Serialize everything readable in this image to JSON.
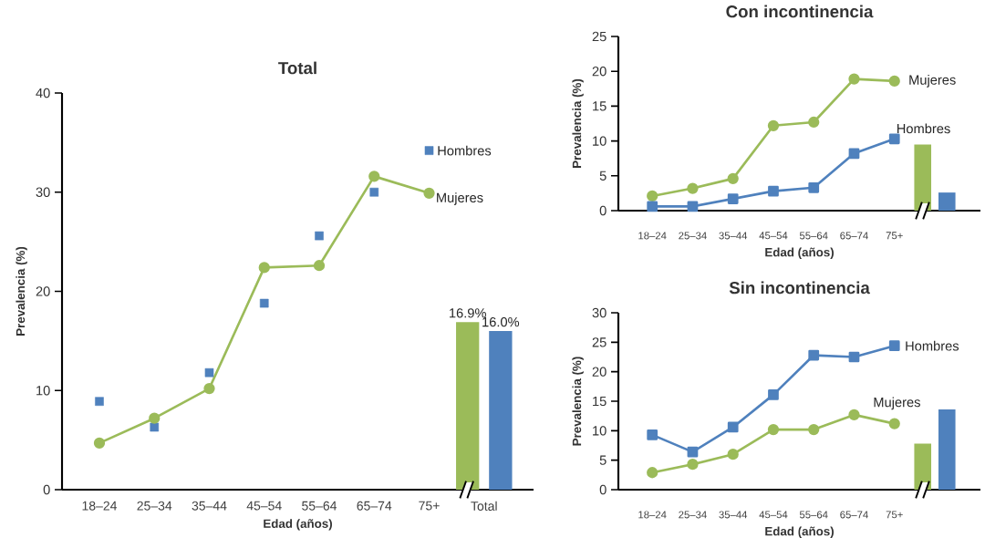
{
  "chart_data": [
    {
      "type": "line",
      "title": "Total",
      "xlabel": "Edad (años)",
      "ylabel": "Prevalencia (%)",
      "categories": [
        "18–24",
        "25–34",
        "35–44",
        "45–54",
        "55–64",
        "65–74",
        "75+",
        "Total"
      ],
      "ylim": [
        0,
        40
      ],
      "yticks": [
        0,
        10,
        20,
        30,
        40
      ],
      "grid": false,
      "legend": false,
      "series": [
        {
          "name": "Hombres",
          "type": "scatter",
          "marker": "square",
          "color": "#4f81bd",
          "values": [
            8.9,
            6.3,
            11.8,
            18.8,
            25.6,
            30.0,
            34.2,
            null
          ]
        },
        {
          "name": "Mujeres",
          "marker": "circle",
          "color": "#9bbb59",
          "values": [
            4.7,
            7.2,
            10.2,
            22.4,
            22.6,
            31.6,
            29.9,
            null
          ]
        },
        {
          "type": "bar",
          "color": "#9bbb59",
          "values": [
            null,
            null,
            null,
            null,
            null,
            null,
            null,
            16.9
          ],
          "value_labels": [
            null,
            null,
            null,
            null,
            null,
            null,
            null,
            "16.9%"
          ]
        },
        {
          "type": "bar",
          "color": "#4f81bd",
          "values": [
            null,
            null,
            null,
            null,
            null,
            null,
            null,
            16.0
          ],
          "value_labels": [
            null,
            null,
            null,
            null,
            null,
            null,
            null,
            "16.0%"
          ]
        }
      ]
    },
    {
      "type": "line",
      "title": "Con incontinencia",
      "xlabel": "Edad (años)",
      "ylabel": "Prevalencia (%)",
      "categories": [
        "18–24",
        "25–34",
        "35–44",
        "45–54",
        "55–64",
        "65–74",
        "75+",
        null
      ],
      "ylim": [
        0,
        25
      ],
      "yticks": [
        0,
        5,
        10,
        15,
        20,
        25
      ],
      "grid": false,
      "legend": false,
      "series": [
        {
          "name": "Mujeres",
          "marker": "circle",
          "color": "#9bbb59",
          "values": [
            2.1,
            3.2,
            4.6,
            12.2,
            12.7,
            18.9,
            18.6,
            null
          ]
        },
        {
          "name": "Hombres",
          "marker": "square",
          "color": "#4f81bd",
          "values": [
            0.6,
            0.6,
            1.7,
            2.8,
            3.3,
            8.2,
            10.3,
            null
          ]
        },
        {
          "type": "bar",
          "color": "#9bbb59",
          "values": [
            null,
            null,
            null,
            null,
            null,
            null,
            null,
            9.5
          ]
        },
        {
          "type": "bar",
          "color": "#4f81bd",
          "values": [
            null,
            null,
            null,
            null,
            null,
            null,
            null,
            2.6
          ]
        }
      ]
    },
    {
      "type": "line",
      "title": "Sin incontinencia",
      "xlabel": "Edad (años)",
      "ylabel": "Prevalencia (%)",
      "categories": [
        "18–24",
        "25–34",
        "35–44",
        "45–54",
        "55–64",
        "65–74",
        "75+",
        null
      ],
      "ylim": [
        0,
        30
      ],
      "yticks": [
        0,
        5,
        10,
        15,
        20,
        25,
        30
      ],
      "grid": false,
      "legend": false,
      "series": [
        {
          "name": "Hombres",
          "marker": "square",
          "color": "#4f81bd",
          "values": [
            9.3,
            6.4,
            10.6,
            16.1,
            22.8,
            22.5,
            24.4,
            null
          ]
        },
        {
          "name": "Mujeres",
          "marker": "circle",
          "color": "#9bbb59",
          "values": [
            2.9,
            4.3,
            6.0,
            10.2,
            10.2,
            12.7,
            11.2,
            null
          ]
        },
        {
          "type": "bar",
          "color": "#9bbb59",
          "values": [
            null,
            null,
            null,
            null,
            null,
            null,
            null,
            7.8
          ]
        },
        {
          "type": "bar",
          "color": "#4f81bd",
          "values": [
            null,
            null,
            null,
            null,
            null,
            null,
            null,
            13.6
          ]
        }
      ]
    }
  ]
}
